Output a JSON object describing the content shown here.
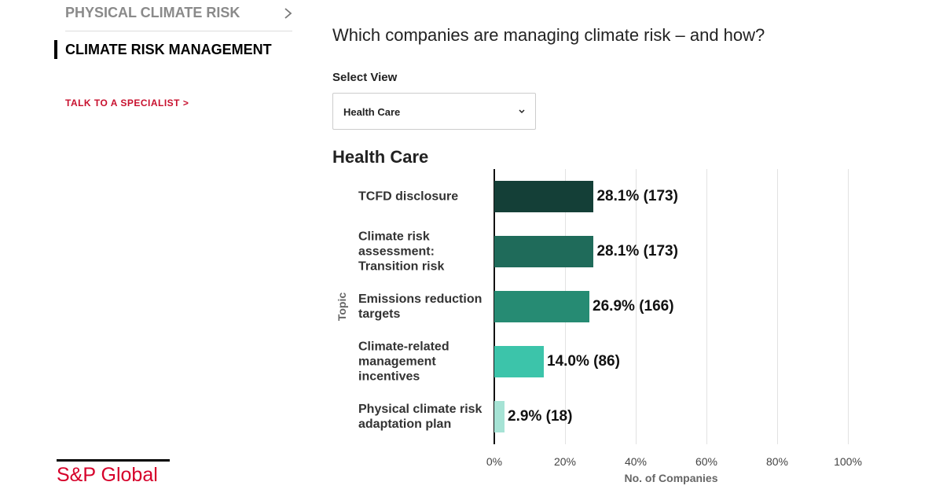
{
  "nav": {
    "items": [
      "PHYSICAL CLIMATE RISK",
      "CLIMATE RISK MANAGEMENT"
    ],
    "cta": "TALK TO A SPECIALIST >",
    "logo": "S&P Global"
  },
  "header": {
    "title": "Which companies are managing climate risk – and how?"
  },
  "select": {
    "label": "Select View",
    "value": "Health Care"
  },
  "chart_data": {
    "type": "bar",
    "orientation": "horizontal",
    "title": "Health Care",
    "categories": [
      "TCFD disclosure",
      "Climate risk assessment: Transition risk",
      "Emissions reduction targets",
      "Climate-related management incentives",
      "Physical climate risk adaptation plan"
    ],
    "values": [
      28.1,
      28.1,
      26.9,
      14.0,
      2.9
    ],
    "value_labels": [
      "28.1% (173)",
      "28.1% (173)",
      "26.9% (166)",
      "14.0% (86)",
      "2.9% (18)"
    ],
    "colors": [
      "#143f37",
      "#1f6b5a",
      "#268b73",
      "#3cc4aa",
      "#a6e3d5"
    ],
    "xlim": [
      0,
      100
    ],
    "xticks": [
      {
        "value": 0,
        "label": "0%"
      },
      {
        "value": 20,
        "label": "20%"
      },
      {
        "value": 40,
        "label": "40%"
      },
      {
        "value": 60,
        "label": "60%"
      },
      {
        "value": 80,
        "label": "80%"
      },
      {
        "value": 100,
        "label": "100%"
      }
    ],
    "x_label": "No. of Companies",
    "y_label": "Topic",
    "grid": true
  }
}
